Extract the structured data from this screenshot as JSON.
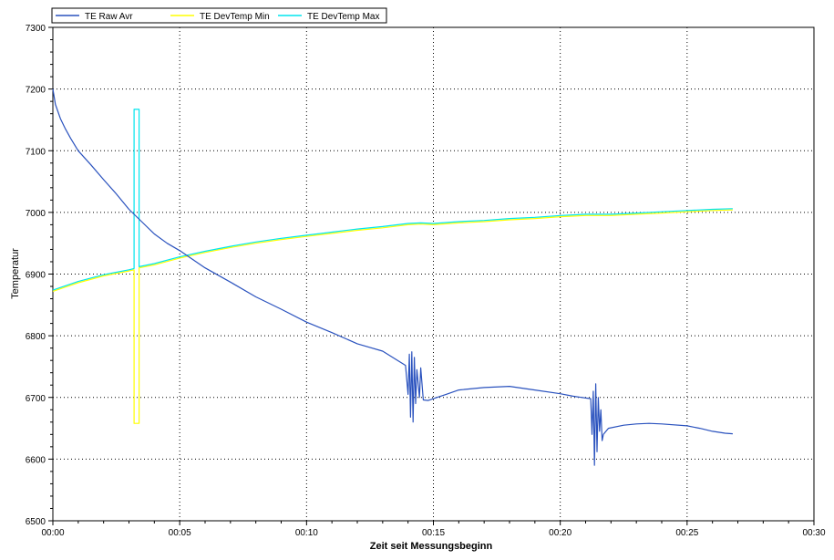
{
  "chart_data": {
    "type": "line",
    "title": "",
    "xlabel": "Zeit seit Messungsbeginn",
    "ylabel": "Temperatur",
    "xlim": [
      0,
      30
    ],
    "ylim": [
      6500,
      7300
    ],
    "x_unit": "minutes",
    "x_ticks": [
      0,
      5,
      10,
      15,
      20,
      25,
      30
    ],
    "x_tick_labels": [
      "00:00",
      "00:05",
      "00:10",
      "00:15",
      "00:20",
      "00:25",
      "00:30"
    ],
    "y_ticks": [
      6500,
      6600,
      6700,
      6800,
      6900,
      7000,
      7100,
      7200,
      7300
    ],
    "y_tick_labels": [
      "6500",
      "6600",
      "6700",
      "6800",
      "6900",
      "7000",
      "7100",
      "7200",
      "7300"
    ],
    "grid": true,
    "legend_position": "top-left",
    "series": [
      {
        "name": "TE Raw Avr",
        "color": "#2a52be",
        "points": [
          [
            0.0,
            7200
          ],
          [
            0.1,
            7175
          ],
          [
            0.3,
            7152
          ],
          [
            0.5,
            7135
          ],
          [
            0.7,
            7120
          ],
          [
            1.0,
            7100
          ],
          [
            1.5,
            7077
          ],
          [
            2.0,
            7053
          ],
          [
            2.5,
            7030
          ],
          [
            3.0,
            7005
          ],
          [
            3.5,
            6985
          ],
          [
            4.0,
            6965
          ],
          [
            4.5,
            6950
          ],
          [
            5.0,
            6938
          ],
          [
            6.0,
            6910
          ],
          [
            7.0,
            6887
          ],
          [
            8.0,
            6863
          ],
          [
            9.0,
            6843
          ],
          [
            10.0,
            6822
          ],
          [
            11.0,
            6805
          ],
          [
            12.0,
            6787
          ],
          [
            13.0,
            6775
          ],
          [
            13.9,
            6752
          ],
          [
            14.0,
            6705
          ],
          [
            14.05,
            6770
          ],
          [
            14.1,
            6668
          ],
          [
            14.15,
            6774
          ],
          [
            14.2,
            6660
          ],
          [
            14.25,
            6765
          ],
          [
            14.3,
            6690
          ],
          [
            14.35,
            6745
          ],
          [
            14.45,
            6700
          ],
          [
            14.5,
            6748
          ],
          [
            14.6,
            6696
          ],
          [
            14.8,
            6695
          ],
          [
            15.0,
            6698
          ],
          [
            15.5,
            6705
          ],
          [
            16.0,
            6712
          ],
          [
            17.0,
            6716
          ],
          [
            18.0,
            6718
          ],
          [
            19.0,
            6712
          ],
          [
            20.0,
            6706
          ],
          [
            20.5,
            6702
          ],
          [
            21.0,
            6699
          ],
          [
            21.2,
            6698
          ],
          [
            21.25,
            6640
          ],
          [
            21.3,
            6710
          ],
          [
            21.35,
            6590
          ],
          [
            21.4,
            6722
          ],
          [
            21.45,
            6612
          ],
          [
            21.5,
            6700
          ],
          [
            21.55,
            6645
          ],
          [
            21.6,
            6680
          ],
          [
            21.65,
            6630
          ],
          [
            21.7,
            6640
          ],
          [
            21.9,
            6650
          ],
          [
            22.5,
            6655
          ],
          [
            23.0,
            6657
          ],
          [
            23.5,
            6658
          ],
          [
            24.0,
            6657
          ],
          [
            25.0,
            6654
          ],
          [
            25.5,
            6650
          ],
          [
            26.0,
            6645
          ],
          [
            26.5,
            6642
          ],
          [
            26.8,
            6641
          ]
        ]
      },
      {
        "name": "TE DevTemp Min",
        "color": "#ffff00",
        "points": [
          [
            0.0,
            6872
          ],
          [
            0.5,
            6879
          ],
          [
            1.0,
            6886
          ],
          [
            2.0,
            6897
          ],
          [
            3.0,
            6905
          ],
          [
            3.2,
            6907
          ],
          [
            3.2,
            6658
          ],
          [
            3.4,
            6658
          ],
          [
            3.4,
            6910
          ],
          [
            4.0,
            6915
          ],
          [
            5.0,
            6926
          ],
          [
            6.0,
            6935
          ],
          [
            7.0,
            6943
          ],
          [
            8.0,
            6950
          ],
          [
            9.0,
            6956
          ],
          [
            10.0,
            6961
          ],
          [
            11.0,
            6966
          ],
          [
            12.0,
            6971
          ],
          [
            13.0,
            6975
          ],
          [
            14.0,
            6980
          ],
          [
            14.5,
            6981
          ],
          [
            15.0,
            6980
          ],
          [
            16.0,
            6983
          ],
          [
            17.0,
            6985
          ],
          [
            18.0,
            6988
          ],
          [
            19.0,
            6990
          ],
          [
            20.0,
            6993
          ],
          [
            21.0,
            6995
          ],
          [
            22.0,
            6995
          ],
          [
            23.0,
            6997
          ],
          [
            24.0,
            6999
          ],
          [
            25.0,
            7001
          ],
          [
            26.0,
            7003
          ],
          [
            26.8,
            7004
          ]
        ]
      },
      {
        "name": "TE DevTemp Max",
        "color": "#00e5ee",
        "points": [
          [
            0.0,
            6874
          ],
          [
            0.5,
            6881
          ],
          [
            1.0,
            6888
          ],
          [
            2.0,
            6899
          ],
          [
            3.0,
            6907
          ],
          [
            3.2,
            6909
          ],
          [
            3.2,
            7167
          ],
          [
            3.4,
            7167
          ],
          [
            3.4,
            6912
          ],
          [
            4.0,
            6917
          ],
          [
            5.0,
            6928
          ],
          [
            6.0,
            6937
          ],
          [
            7.0,
            6945
          ],
          [
            8.0,
            6952
          ],
          [
            9.0,
            6958
          ],
          [
            10.0,
            6963
          ],
          [
            11.0,
            6968
          ],
          [
            12.0,
            6973
          ],
          [
            13.0,
            6977
          ],
          [
            14.0,
            6982
          ],
          [
            14.5,
            6983
          ],
          [
            15.0,
            6982
          ],
          [
            16.0,
            6985
          ],
          [
            17.0,
            6987
          ],
          [
            18.0,
            6990
          ],
          [
            19.0,
            6992
          ],
          [
            20.0,
            6995
          ],
          [
            21.0,
            6997
          ],
          [
            22.0,
            6997
          ],
          [
            23.0,
            6999
          ],
          [
            24.0,
            7001
          ],
          [
            25.0,
            7003
          ],
          [
            26.0,
            7005
          ],
          [
            26.8,
            7006
          ]
        ]
      }
    ]
  }
}
